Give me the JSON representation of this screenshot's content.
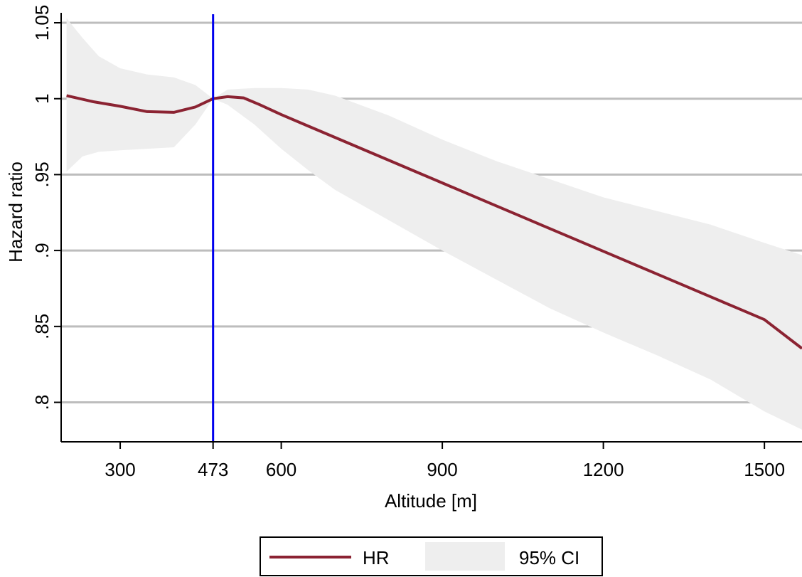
{
  "chart_data": {
    "type": "line",
    "xlabel": "Altitude [m]",
    "ylabel": "Hazard ratio",
    "xlim": [
      190,
      1570
    ],
    "ylim": [
      0.774,
      1.065
    ],
    "xticks": [
      300,
      473,
      600,
      900,
      1200,
      1500
    ],
    "xtick_labels": [
      "300",
      "473",
      "600",
      "900",
      "1200",
      "1500"
    ],
    "yticks": [
      0.8,
      0.85,
      0.9,
      0.95,
      1.0,
      1.05
    ],
    "ytick_labels": [
      ".8",
      ".85",
      ".9",
      ".95",
      "1",
      "1.05"
    ],
    "grid": "horizontal",
    "reference_line": {
      "x": 473,
      "color": "#0000ee"
    },
    "legend": {
      "position": "bottom",
      "entries": [
        "HR",
        "95% CI"
      ]
    },
    "series": [
      {
        "name": "HR",
        "kind": "line",
        "color": "#8b2332",
        "x": [
          200,
          250,
          300,
          350,
          400,
          440,
          473,
          500,
          530,
          560,
          600,
          650,
          700,
          750,
          800,
          850,
          900,
          950,
          1000,
          1050,
          1100,
          1150,
          1200,
          1250,
          1300,
          1350,
          1400,
          1450,
          1500,
          1570
        ],
        "y": [
          1.002,
          0.998,
          0.995,
          0.9915,
          0.991,
          0.9945,
          1.0,
          1.0013,
          1.0005,
          0.996,
          0.9895,
          0.982,
          0.9745,
          0.967,
          0.9595,
          0.952,
          0.9445,
          0.937,
          0.9295,
          0.922,
          0.9145,
          0.907,
          0.8995,
          0.892,
          0.8845,
          0.877,
          0.8695,
          0.862,
          0.8545,
          0.8355
        ]
      },
      {
        "name": "95% CI",
        "kind": "band",
        "color": "#eeeeee",
        "x": [
          200,
          230,
          260,
          300,
          350,
          400,
          440,
          473,
          500,
          550,
          600,
          650,
          700,
          800,
          900,
          1000,
          1100,
          1200,
          1300,
          1400,
          1500,
          1570
        ],
        "upper": [
          1.053,
          1.04,
          1.028,
          1.02,
          1.016,
          1.014,
          1.009,
          1.0,
          1.006,
          1.007,
          1.007,
          1.006,
          1.002,
          0.989,
          0.973,
          0.959,
          0.947,
          0.935,
          0.926,
          0.917,
          0.905,
          0.897
        ],
        "lower": [
          0.952,
          0.962,
          0.965,
          0.966,
          0.967,
          0.968,
          0.983,
          1.0,
          0.996,
          0.983,
          0.967,
          0.953,
          0.94,
          0.92,
          0.9,
          0.881,
          0.862,
          0.846,
          0.831,
          0.815,
          0.794,
          0.782
        ]
      }
    ]
  }
}
